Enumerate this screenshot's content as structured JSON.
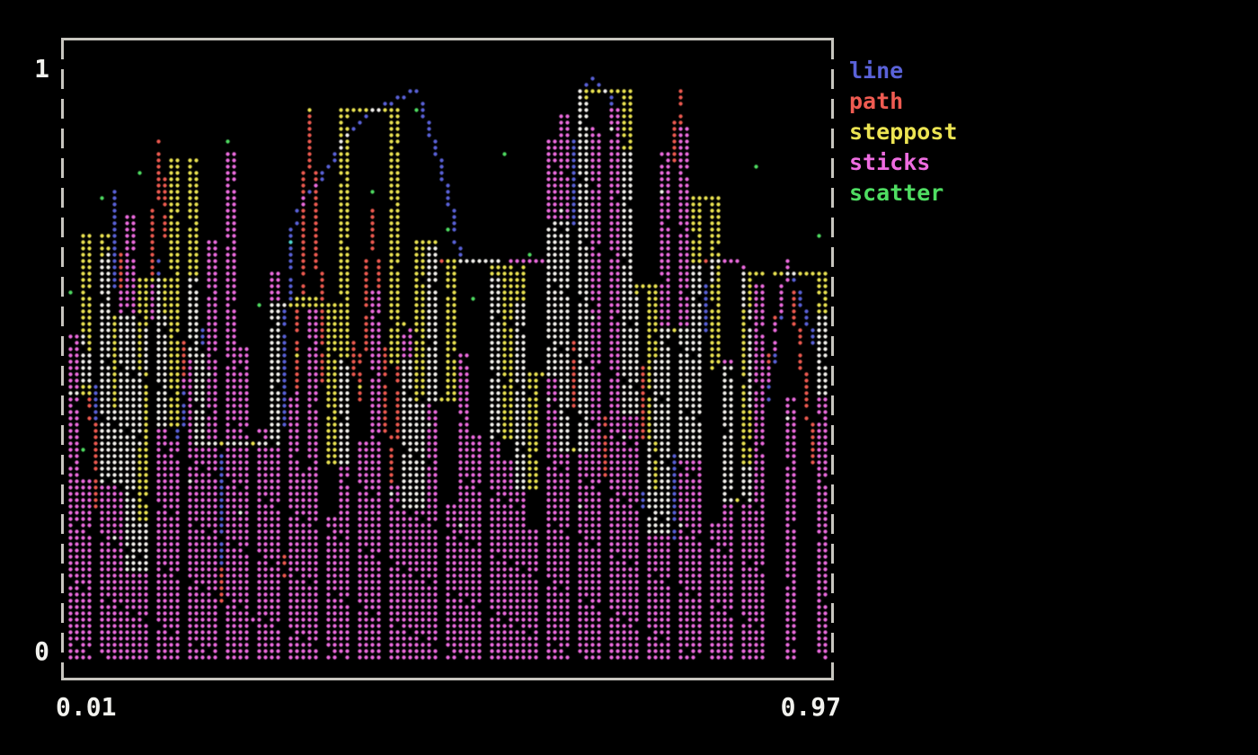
{
  "figure": {
    "background": "#000000",
    "border_color": "#c8c6bf",
    "label_color": "#f2f2ee"
  },
  "axis": {
    "y_max_label": "1",
    "y_min_label": "0",
    "x_min_label": "0.01",
    "x_max_label": "0.97"
  },
  "legend": {
    "items": [
      {
        "label": "line",
        "color": "#5a62d8"
      },
      {
        "label": "path",
        "color": "#ef5b51"
      },
      {
        "label": "steppost",
        "color": "#ece452"
      },
      {
        "label": "sticks",
        "color": "#ee6ce0"
      },
      {
        "label": "scatter",
        "color": "#4fdd62"
      }
    ]
  },
  "chart_data": {
    "type": "line",
    "title": "",
    "xlabel": "",
    "ylabel": "",
    "xlim": [
      0.01,
      0.97
    ],
    "ylim": [
      0,
      1
    ],
    "x": [
      0.01,
      0.03,
      0.05,
      0.07,
      0.08,
      0.1,
      0.12,
      0.14,
      0.16,
      0.17,
      0.19,
      0.21,
      0.23,
      0.25,
      0.27,
      0.29,
      0.3,
      0.32,
      0.34,
      0.36,
      0.38,
      0.4,
      0.42,
      0.44,
      0.45,
      0.47,
      0.49,
      0.51,
      0.53,
      0.55,
      0.57,
      0.58,
      0.6,
      0.62,
      0.64,
      0.66,
      0.68,
      0.7,
      0.72,
      0.73,
      0.75,
      0.77,
      0.79,
      0.81,
      0.83,
      0.85,
      0.87,
      0.89,
      0.93,
      0.97
    ],
    "series": [
      {
        "name": "line",
        "seriestype": "line",
        "color": "#5a62d8",
        "mask": 4,
        "values": [
          0.22,
          0.55,
          0.38,
          0.81,
          0.1,
          0.45,
          0.68,
          0.27,
          0.52,
          0.36,
          0.63,
          0.06,
          0.06,
          0.06,
          0.06,
          0.72,
          0.76,
          0.8,
          0.84,
          0.88,
          0.91,
          0.93,
          0.95,
          0.96,
          0.97,
          0.9,
          0.79,
          0.675,
          0.675,
          0.675,
          0.675,
          0.675,
          0.675,
          0.675,
          0.52,
          0.97,
          0.99,
          0.96,
          0.35,
          0.2,
          0.3,
          0.58,
          0.12,
          0.44,
          0.68,
          0.68,
          0.68,
          0.33,
          0.68,
          0.52
        ]
      },
      {
        "name": "path",
        "seriestype": "path",
        "color": "#ef5b51",
        "mask": 1,
        "values": [
          0.35,
          0.62,
          0.18,
          0.5,
          0.75,
          0.28,
          0.88,
          0.66,
          0.42,
          0.58,
          0.24,
          0.06,
          0.06,
          0.06,
          0.06,
          0.2,
          0.52,
          0.93,
          0.38,
          0.65,
          0.44,
          0.76,
          0.3,
          0.57,
          0.4,
          0.68,
          0.675,
          0.675,
          0.675,
          0.675,
          0.675,
          0.675,
          0.675,
          0.675,
          0.71,
          0.36,
          0.58,
          0.25,
          0.47,
          0.69,
          0.31,
          0.7,
          0.97,
          0.68,
          0.68,
          0.68,
          0.68,
          0.38,
          0.68,
          0.29
        ]
      },
      {
        "name": "steppost",
        "seriestype": "steppost",
        "color": "#ece452",
        "mask": 3,
        "values": [
          0.45,
          0.72,
          0.3,
          0.58,
          0.15,
          0.65,
          0.4,
          0.85,
          0.52,
          0.36,
          0.36,
          0.36,
          0.37,
          0.36,
          0.6,
          0.6,
          0.61,
          0.6,
          0.33,
          0.94,
          0.94,
          0.94,
          0.5,
          0.26,
          0.71,
          0.44,
          0.675,
          0.675,
          0.675,
          0.38,
          0.67,
          0.29,
          0.48,
          0.74,
          0.35,
          0.97,
          0.97,
          0.97,
          0.42,
          0.63,
          0.21,
          0.56,
          0.34,
          0.78,
          0.49,
          0.27,
          0.66,
          0.66,
          0.66,
          0.45
        ]
      },
      {
        "name": "sticks",
        "seriestype": "sticks",
        "color": "#ee6ce0",
        "mask": 5,
        "values": [
          0.55,
          0.3,
          0.68,
          0.42,
          0.75,
          0.22,
          0.58,
          0.36,
          0.64,
          0.48,
          0.71,
          0.86,
          0.53,
          0.39,
          0.66,
          0.45,
          0.31,
          0.59,
          0.24,
          0.5,
          0.37,
          0.62,
          0.29,
          0.56,
          0.43,
          0.7,
          0.26,
          0.52,
          0.38,
          0.65,
          0.33,
          0.6,
          0.21,
          0.88,
          0.92,
          0.95,
          0.9,
          0.93,
          0.86,
          0.61,
          0.28,
          0.86,
          0.9,
          0.67,
          0.23,
          0.51,
          0.32,
          0.63,
          0.44,
          0.58
        ]
      },
      {
        "name": "scatter",
        "seriestype": "scatter",
        "color": "#4fdd62",
        "mask": 2,
        "values": [
          0.62,
          0.35,
          0.78,
          0.2,
          0.55,
          0.83,
          0.42,
          0.67,
          0.3,
          0.74,
          0.48,
          0.88,
          0.25,
          0.6,
          0.37,
          0.71,
          0.52,
          0.93,
          0.33,
          0.65,
          0.46,
          0.8,
          0.28,
          0.57,
          0.94,
          0.4,
          0.73,
          0.23,
          0.61,
          0.5,
          0.86,
          0.32,
          0.69,
          0.44,
          0.76,
          0.26,
          0.58,
          0.9,
          0.38,
          0.63,
          0.51,
          0.79,
          0.22,
          0.47,
          0.68,
          0.34,
          0.56,
          0.84,
          0.41,
          0.72
        ]
      }
    ],
    "palette": {
      "1": "#ef5b51",
      "2": "#4fdd62",
      "3": "#ece452",
      "4": "#5a62d8",
      "5": "#ee6ce0",
      "6": "#4fd8d2",
      "7": "#f4f2ee"
    },
    "layout": {
      "legend_position": "right-outside-top",
      "border": "solid-top-bottom-dashed-sides",
      "marker": "braille-dot",
      "blend_mode": "ansi-color-or",
      "grid": false
    }
  }
}
